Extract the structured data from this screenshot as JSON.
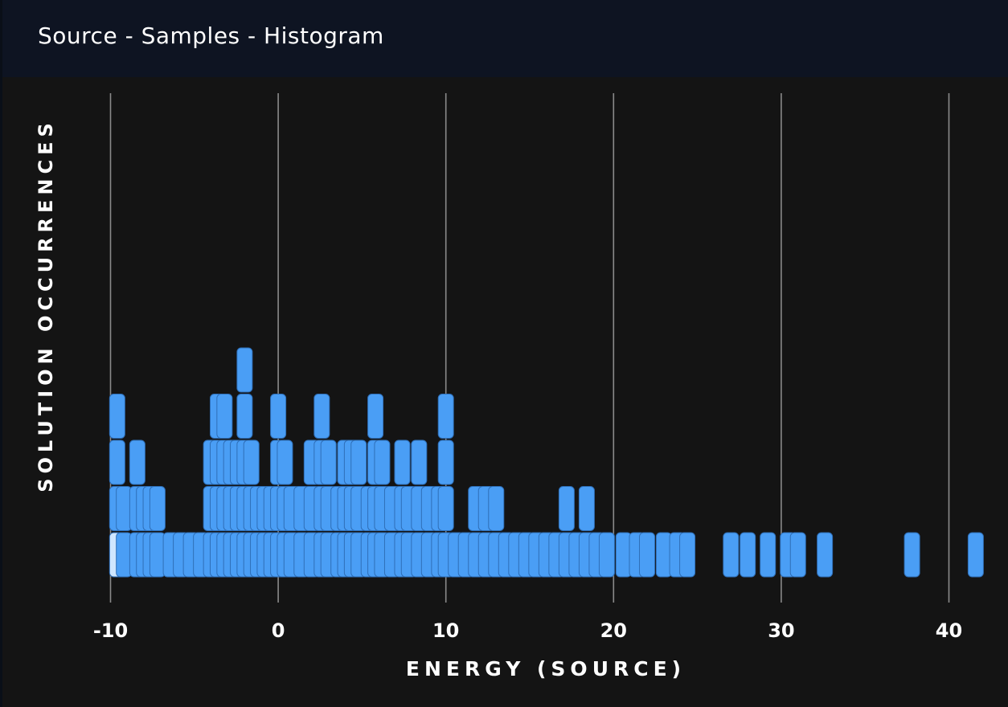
{
  "header": {
    "title": "Source - Samples - Histogram"
  },
  "chart_data": {
    "type": "bar",
    "title": "Source - Samples - Histogram",
    "xlabel": "ENERGY (SOURCE)",
    "ylabel": "SOLUTION OCCURRENCES",
    "xlim": [
      -10.5,
      42
    ],
    "ylim": [
      0,
      5
    ],
    "xticks": [
      -10,
      0,
      10,
      20,
      30,
      40
    ],
    "grid": "vertical",
    "colors": {
      "bar": "#4a9ef5",
      "bar_highlight": "#cfe6ff",
      "background": "#141414",
      "gridline": "#8a8a8a",
      "text": "#ffffff"
    },
    "highlight_x": [
      -9.6
    ],
    "x": [
      -9.6,
      -9.2,
      -8.4,
      -8.0,
      -7.6,
      -7.2,
      -6.4,
      -5.8,
      -5.2,
      -4.6,
      -4.0,
      -3.6,
      -3.2,
      -2.8,
      -2.4,
      -2.0,
      -1.6,
      -1.2,
      -0.8,
      -0.4,
      0.0,
      0.4,
      0.8,
      1.4,
      2.0,
      2.6,
      3.0,
      3.6,
      4.0,
      4.4,
      4.8,
      5.4,
      5.8,
      6.2,
      6.8,
      7.4,
      7.8,
      8.4,
      9.0,
      9.6,
      10.0,
      10.6,
      11.2,
      11.8,
      12.4,
      13.0,
      13.6,
      14.2,
      14.8,
      15.4,
      16.0,
      16.6,
      17.2,
      17.8,
      18.4,
      19.0,
      19.6,
      20.6,
      21.4,
      22.0,
      23.0,
      23.8,
      24.4,
      27.0,
      28.0,
      29.2,
      30.4,
      31.0,
      32.6,
      37.8,
      41.6
    ],
    "values": [
      4,
      2,
      3,
      2,
      2,
      2,
      1,
      1,
      1,
      1,
      3,
      4,
      4,
      3,
      3,
      5,
      3,
      2,
      2,
      2,
      4,
      3,
      2,
      2,
      3,
      4,
      3,
      2,
      3,
      3,
      3,
      2,
      4,
      3,
      2,
      3,
      2,
      3,
      2,
      2,
      4,
      1,
      1,
      2,
      2,
      2,
      1,
      1,
      1,
      1,
      1,
      1,
      2,
      1,
      2,
      1,
      1,
      1,
      1,
      1,
      1,
      1,
      1,
      1,
      1,
      1,
      1,
      1,
      1,
      1,
      1
    ]
  }
}
